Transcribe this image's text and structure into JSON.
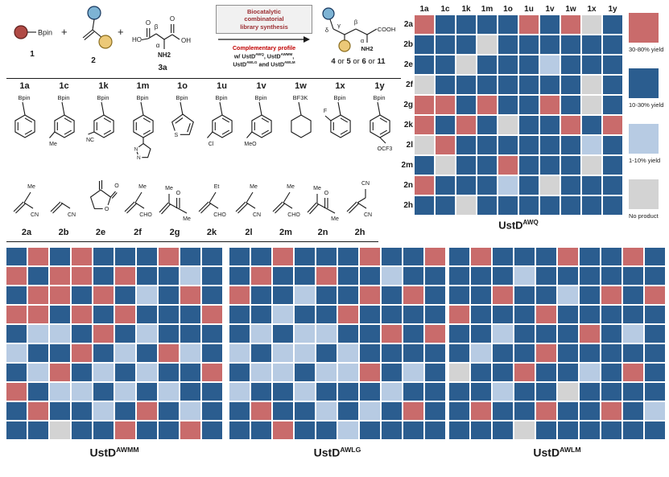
{
  "palette_note": "figure accent colors",
  "colors": {
    "R": "#c96b6b",
    "D": "#2b5d8f",
    "L": "#b7cbe3",
    "G": "#d3d3d3"
  },
  "palette": {
    "sphere_blue": "#7db3d4",
    "sphere_yellow": "#ecc978",
    "sphere_red": "#b04a45",
    "greek_red": "#c00000",
    "amine_blue": "#2e75b6"
  },
  "scheme": {
    "plus": "+",
    "c1": {
      "id": "1",
      "bpin": "Bpin"
    },
    "c2": {
      "id": "2"
    },
    "c3": {
      "id": "3a",
      "ho": "HO",
      "o1": "O",
      "o2": "O",
      "oh": "OH",
      "nh2": "NH2",
      "alpha": "α",
      "beta": "β"
    },
    "box_lines": [
      "Biocatalytic",
      "combinatorial",
      "library synthesis"
    ],
    "cond_lines": [
      [
        {
          "t": "Complementary profile",
          "b": true,
          "red": true
        }
      ],
      [
        {
          "t": "w/ UstD",
          "b": true
        },
        {
          "t": "AWQ",
          "b": true,
          "sup": true
        },
        {
          "t": ", UstD",
          "b": true
        },
        {
          "t": "AWMM",
          "b": true,
          "sup": true
        },
        {
          "t": ",",
          "b": true
        }
      ],
      [
        {
          "t": "UstD",
          "b": true
        },
        {
          "t": "AWLG",
          "b": true,
          "sup": true
        },
        {
          "t": " and UstD",
          "b": true
        },
        {
          "t": "AWLM",
          "b": true,
          "sup": true
        }
      ]
    ],
    "product": {
      "delta": "δ",
      "gamma": "γ",
      "beta": "β",
      "alpha": "α",
      "nh2": "NH2",
      "cooh": "COOH",
      "id_parts": [
        {
          "t": "4",
          "b": true
        },
        {
          "t": " or "
        },
        {
          "t": "5",
          "b": true
        },
        {
          "t": " or "
        },
        {
          "t": "6",
          "b": true
        },
        {
          "t": " or "
        },
        {
          "t": "11",
          "b": true
        }
      ]
    }
  },
  "boronates": [
    {
      "id": "1a",
      "head": "Bpin",
      "ring": "benzene",
      "sub": null
    },
    {
      "id": "1c",
      "head": "Bpin",
      "ring": "benzene",
      "sub": {
        "text": "Me",
        "pos": "bl"
      }
    },
    {
      "id": "1k",
      "head": "Bpin",
      "ring": "benzene",
      "sub": {
        "text": "NC",
        "pos": "l"
      }
    },
    {
      "id": "1m",
      "head": "Bpin",
      "ring": "benzene",
      "sub": null,
      "fused": "pyrazole",
      "fused_labels": [
        "N",
        "N"
      ]
    },
    {
      "id": "1o",
      "head": "Bpin",
      "ring": "thiophene",
      "sub": null,
      "hetero": "S"
    },
    {
      "id": "1u",
      "head": "Bpin",
      "ring": "benzene",
      "sub": {
        "text": "Cl",
        "pos": "bl"
      }
    },
    {
      "id": "1v",
      "head": "Bpin",
      "ring": "benzene",
      "sub": {
        "text": "MeO",
        "pos": "bl"
      }
    },
    {
      "id": "1w",
      "head": "BF3K",
      "ring": "cyclohexane",
      "sub": null
    },
    {
      "id": "1x",
      "head": "Bpin",
      "ring": "benzene",
      "sub": {
        "text": "F",
        "pos": "ol"
      }
    },
    {
      "id": "1y",
      "head": "Bpin",
      "ring": "benzene",
      "sub": {
        "text": "OCF3",
        "pos": "br"
      }
    }
  ],
  "acceptors": [
    {
      "id": "2a",
      "kind": "alkene",
      "top": "Me",
      "bot": "CN"
    },
    {
      "id": "2b",
      "kind": "alkene",
      "top": null,
      "bot": "CN"
    },
    {
      "id": "2e",
      "kind": "lactone",
      "ring_o": "O",
      "carbonyl_o": "O"
    },
    {
      "id": "2f",
      "kind": "alkene",
      "top": "Me",
      "bot": "CHO"
    },
    {
      "id": "2g",
      "kind": "enone",
      "alk": "Me",
      "o": "O",
      "end": "Me"
    },
    {
      "id": "2k",
      "kind": "alkene",
      "top": "Et",
      "bot": "CHO"
    },
    {
      "id": "2l",
      "kind": "alkene",
      "top": "Me",
      "bot": "CN"
    },
    {
      "id": "2m",
      "kind": "alkene",
      "top": "Me",
      "bot": "CHO"
    },
    {
      "id": "2n",
      "kind": "enone",
      "alk": "Me",
      "o": "O",
      "end": "Me"
    },
    {
      "id": "2h",
      "kind": "alkene",
      "top": "CN",
      "bot": "CN",
      "chain": true
    }
  ],
  "legend": [
    {
      "code": "R",
      "label": "30-80% yield"
    },
    {
      "code": "D",
      "label": "10-30% yield"
    },
    {
      "code": "L",
      "label": "1-10% yield"
    },
    {
      "code": "G",
      "label": "No product"
    }
  ],
  "yield_categories": {
    "R": "30-80% yield",
    "D": "10-30% yield",
    "L": "1-10% yield",
    "G": "No product"
  },
  "chart_data": [
    {
      "type": "heatmap",
      "title": [
        {
          "t": "UstD"
        },
        {
          "t": "AWQ",
          "sup": true
        }
      ],
      "cols": [
        "1a",
        "1c",
        "1k",
        "1m",
        "1o",
        "1u",
        "1v",
        "1w",
        "1x",
        "1y"
      ],
      "rows": [
        "2a",
        "2b",
        "2e",
        "2f",
        "2g",
        "2k",
        "2l",
        "2m",
        "2n",
        "2h"
      ],
      "legend_position": "right",
      "cells": [
        "RDDDDRDRGD",
        "DDDGDDDDDD",
        "DDGDDDLDDD",
        "GDDDDDDDGD",
        "RRDRDDRDGD",
        "RDRDGDDRDR",
        "GRDDDDDDLD",
        "DGDDRDDDGD",
        "RDDDLDGDDD",
        "DDGDDDDDDD"
      ]
    },
    {
      "type": "heatmap",
      "title": [
        {
          "t": "UstD"
        },
        {
          "t": "AWMM",
          "sup": true
        }
      ],
      "cols": null,
      "rows": null,
      "cells": [
        "DRDRDDDRDD",
        "RDRRDRDDLD",
        "DRRDRDLDRD",
        "RRDRDRDDDR",
        "DLLDRDLDDD",
        "LDDRDLDRLD",
        "DLRDLDLDDR",
        "RDLLDLDLDD",
        "DRDDLDRDLD",
        "DDGDDRDDRD"
      ]
    },
    {
      "type": "heatmap",
      "title": [
        {
          "t": "UstD"
        },
        {
          "t": "AWLG",
          "sup": true
        }
      ],
      "cols": null,
      "rows": null,
      "cells": [
        "DDRDDDRDDR",
        "DRDDRDDLDD",
        "RDDLDDRDRD",
        "DDLDDRDDDD",
        "DLDLLDDRDR",
        "LDLLDLDDDD",
        "DLLDLLRDLD",
        "LDDLDDDLDD",
        "DRDDLDLDRD",
        "DDRDDLDDDD"
      ]
    },
    {
      "type": "heatmap",
      "title": [
        {
          "t": "UstD"
        },
        {
          "t": "AWLM",
          "sup": true
        }
      ],
      "cols": null,
      "rows": null,
      "cells": [
        "DRDDDRDDRD",
        "DDDLDDDDDD",
        "DDRDDLDRDR",
        "RDDDRDDDDD",
        "DDLDDDRDLD",
        "DLDDRDDDDD",
        "GDDRDDLDRD",
        "DDLDDGDDDD",
        "DRDDRDDRDL",
        "DDDGDDDDDD"
      ]
    }
  ]
}
